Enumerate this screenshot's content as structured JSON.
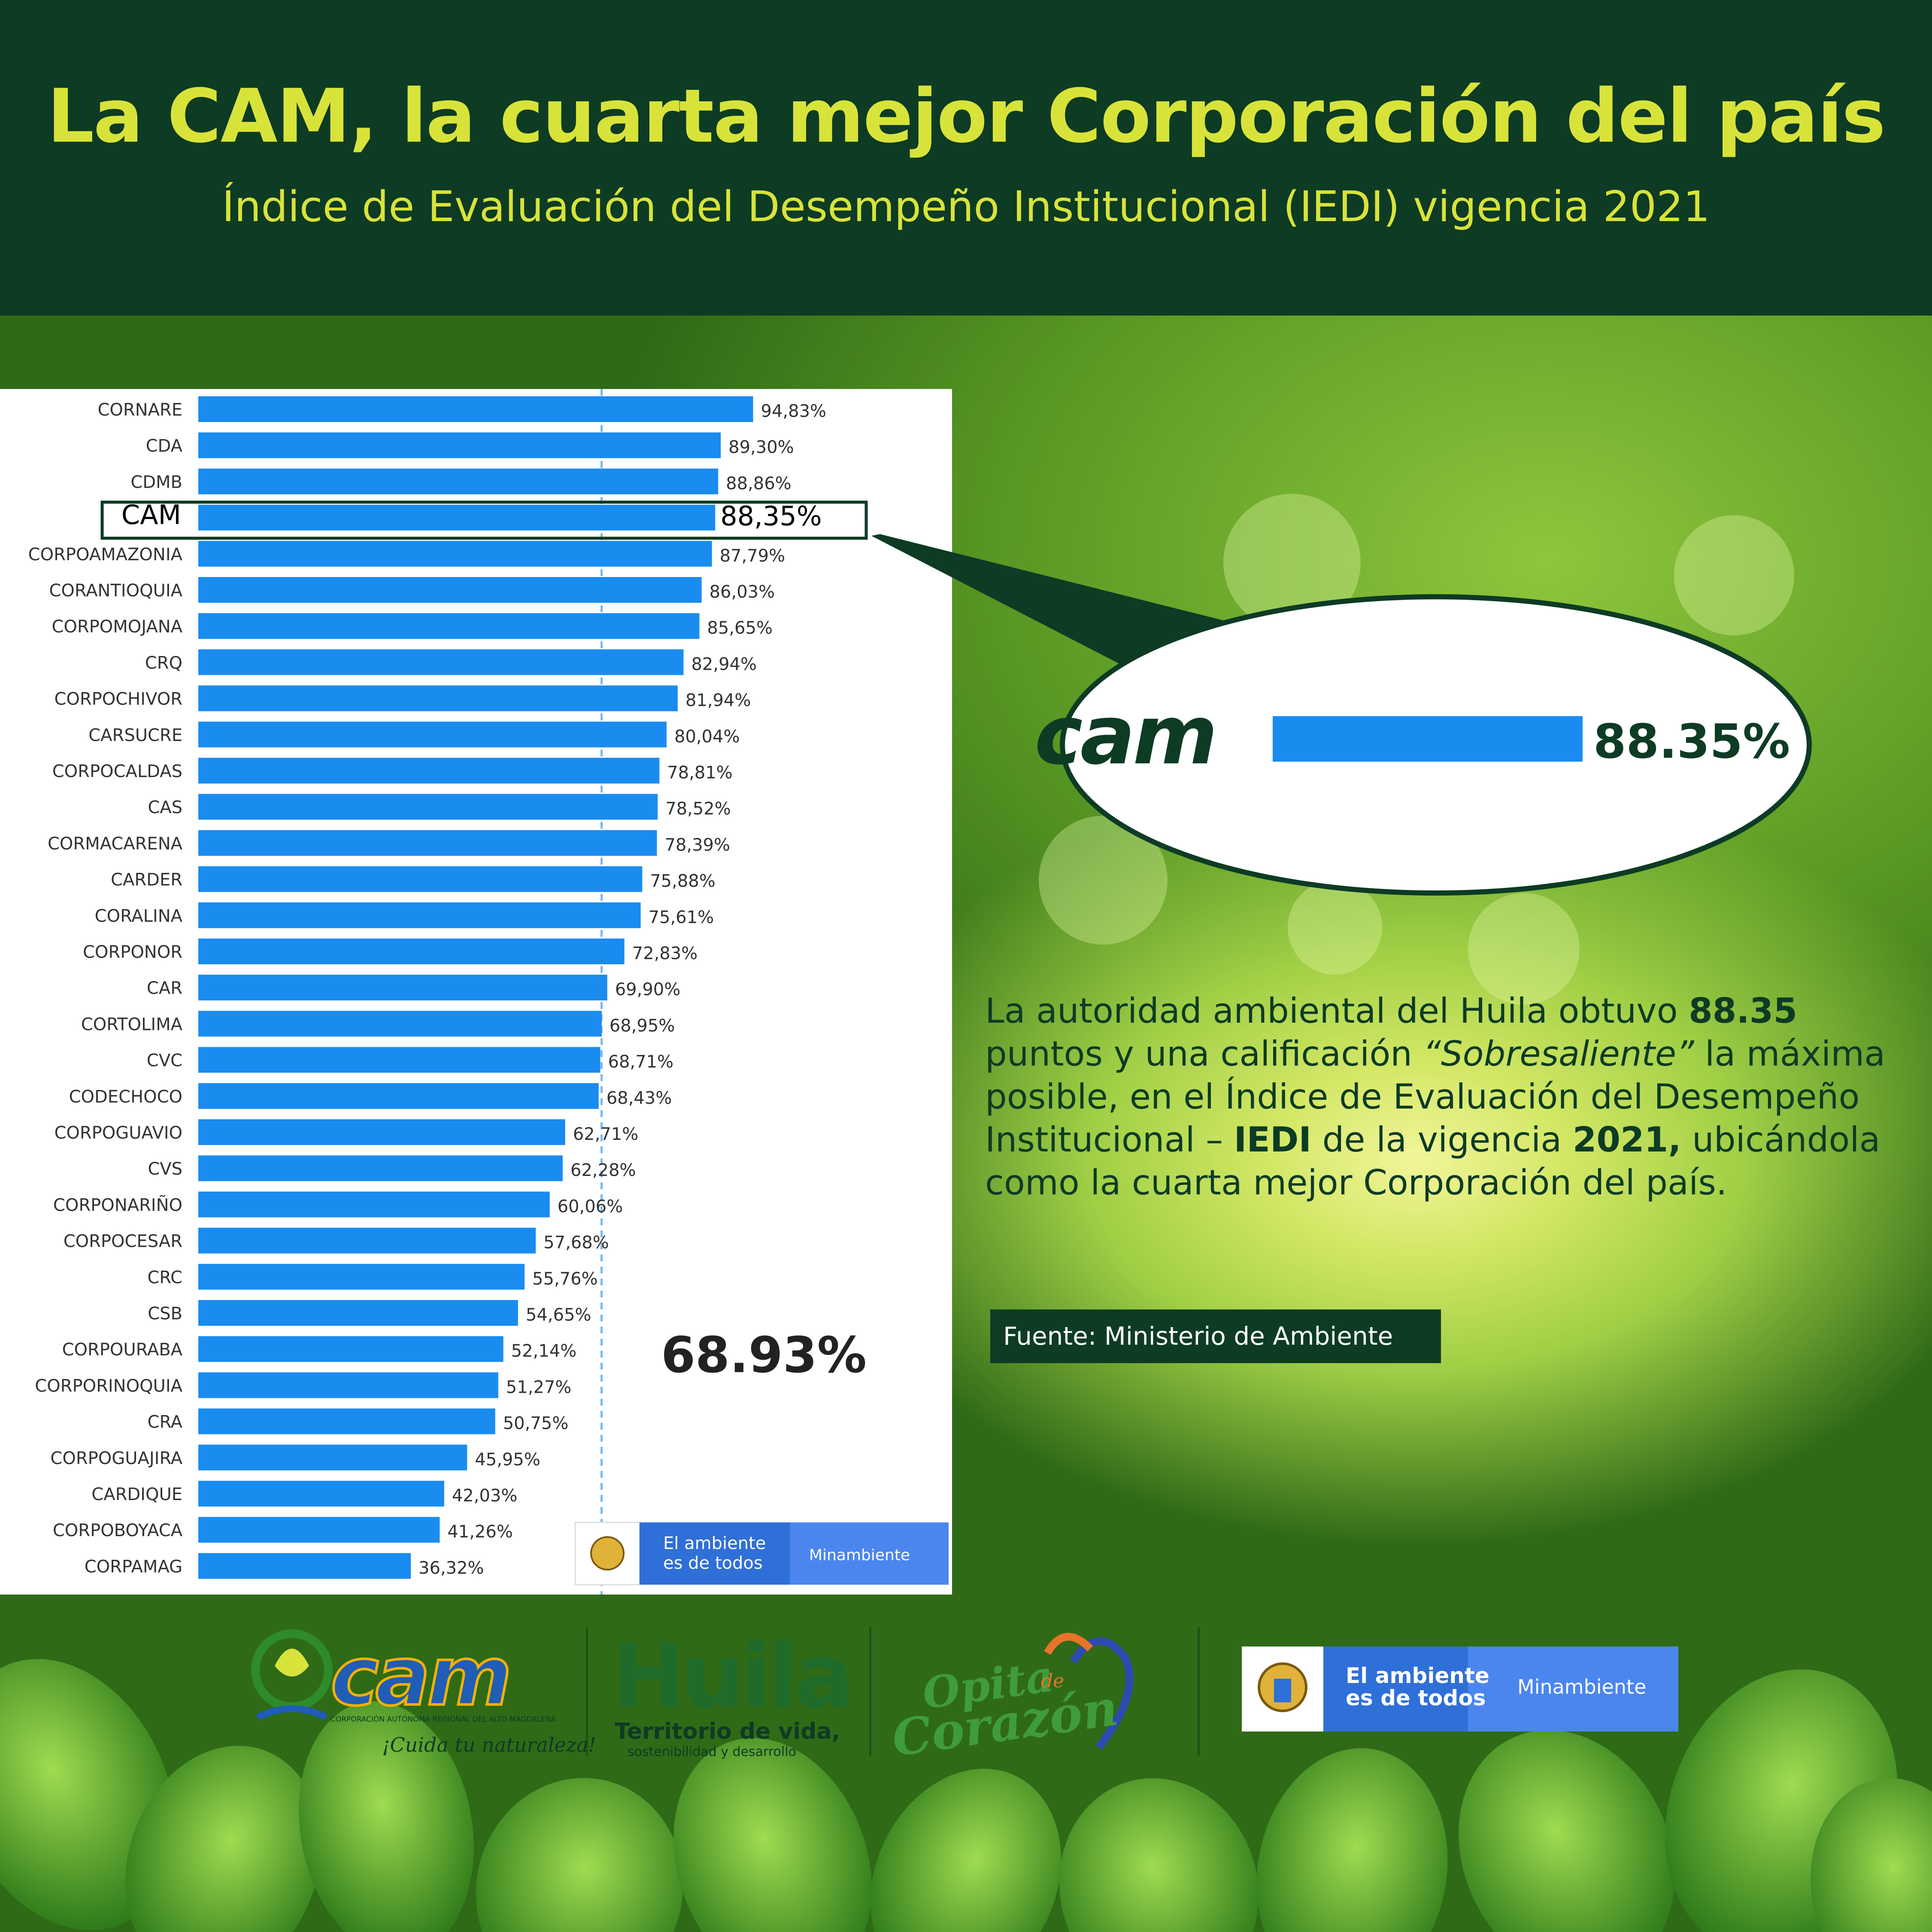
{
  "header": {
    "title": "La CAM, la cuarta mejor Corporación del país",
    "subtitle": "Índice de Evaluación del Desempeño Institucional (IEDI) vigencia 2021"
  },
  "chart_data": {
    "type": "bar",
    "orientation": "horizontal",
    "categories": [
      "CORNARE",
      "CDA",
      "CDMB",
      "CAM",
      "CORPOAMAZONIA",
      "CORANTIOQUIA",
      "CORPOMOJANA",
      "CRQ",
      "CORPOCHIVOR",
      "CARSUCRE",
      "CORPOCALDAS",
      "CAS",
      "CORMACARENA",
      "CARDER",
      "CORALINA",
      "CORPONOR",
      "CAR",
      "CORTOLIMA",
      "CVC",
      "CODECHOCO",
      "CORPOGUAVIO",
      "CVS",
      "CORPONARIÑO",
      "CORPOCESAR",
      "CRC",
      "CSB",
      "CORPOURABA",
      "CORPORINOQUIA",
      "CRA",
      "CORPOGUAJIRA",
      "CARDIQUE",
      "CORPOBOYACA",
      "CORPAMAG"
    ],
    "values": [
      94.83,
      89.3,
      88.86,
      88.35,
      87.79,
      86.03,
      85.65,
      82.94,
      81.94,
      80.04,
      78.81,
      78.52,
      78.39,
      75.88,
      75.61,
      72.83,
      69.9,
      68.95,
      68.71,
      68.43,
      62.71,
      62.28,
      60.06,
      57.68,
      55.76,
      54.65,
      52.14,
      51.27,
      50.75,
      45.95,
      42.03,
      41.26,
      36.32
    ],
    "value_labels": [
      "94,83%",
      "89,30%",
      "88,86%",
      "88,35%",
      "87,79%",
      "86,03%",
      "85,65%",
      "82,94%",
      "81,94%",
      "80,04%",
      "78,81%",
      "78,52%",
      "78,39%",
      "75,88%",
      "75,61%",
      "72,83%",
      "69,90%",
      "68,95%",
      "68,71%",
      "68,43%",
      "62,71%",
      "62,28%",
      "60,06%",
      "57,68%",
      "55,76%",
      "54,65%",
      "52,14%",
      "51,27%",
      "50,75%",
      "45,95%",
      "42,03%",
      "41,26%",
      "36,32%"
    ],
    "xlim": [
      0,
      100
    ],
    "highlight_category": "CAM",
    "reference_line_value": 68.93,
    "reference_line_label": "68.93%",
    "bar_color": "#1a8cf0",
    "legend": "none"
  },
  "callout": {
    "logo_text": "cam",
    "value_label": "88.35%",
    "value": 88.35
  },
  "body": {
    "p1": "La autoridad ambiental del Huila obtuvo ",
    "b1": "88.35",
    "p2": " puntos y una calificación ",
    "i1": "“Sobresaliente”",
    "p3": " la máxima posible, en el Índice de Evaluación del Desempeño Institucional – ",
    "b2": "IEDI",
    "p4": " de la vigencia ",
    "b3": "2021,",
    "p5": " ubicándola como la cuarta mejor Corporación del país."
  },
  "source": "Fuente: Ministerio de Ambiente",
  "chart_badge": {
    "line1": "El ambiente",
    "line2": "es de todos",
    "ministry": "Minambiente"
  },
  "logos": {
    "cam": {
      "wordmark": "cam",
      "tagline1": "CORPORACIÓN AUTÓNOMA REGIONAL DEL ALTO MAGDALENA",
      "tagline2": "¡Cuida tu naturaleza!"
    },
    "huila": {
      "wordmark": "Huila",
      "line1": "Territorio de vida,",
      "line2": "sostenibilidad y desarrollo"
    },
    "opita": {
      "line1": "Opita",
      "de": "de",
      "line2": "Corazón"
    },
    "minambiente": {
      "line1": "El ambiente",
      "line2": "es de todos",
      "ministry": "Minambiente"
    }
  },
  "colors": {
    "header_bg": "#0d3b24",
    "title": "#d8e33a",
    "bar": "#1a8cf0",
    "dark_green": "#0d3b24",
    "badge_blue": "#2f6fd8"
  }
}
